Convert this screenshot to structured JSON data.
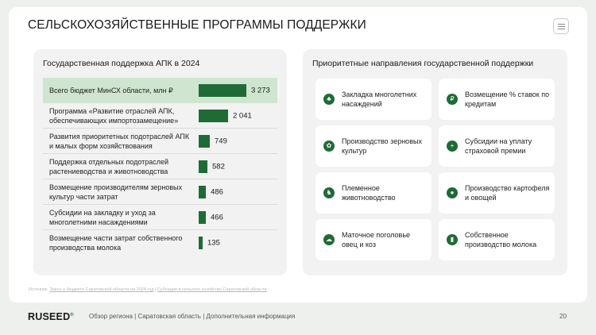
{
  "header": {
    "title": "СЕЛЬСКОХОЗЯЙСТВЕННЫЕ ПРОГРАММЫ ПОДДЕРЖКИ"
  },
  "left_panel": {
    "title": "Государственная поддержка АПК в 2024",
    "rows": [
      {
        "label": "Всего бюджет МинСХ области, млн ₽",
        "value": "3 273"
      },
      {
        "label": "Программа «Развитие отраслей АПК, обеспечивающих импортозамещение»",
        "value": "2 041"
      },
      {
        "label": "Развития приоритетных подотраслей АПК и малых форм хозяйствования",
        "value": "749"
      },
      {
        "label": "Поддержка отдельных подотраслей растениеводства и животноводства",
        "value": "582"
      },
      {
        "label": "Возмещение производителям зерновых культур части затрат",
        "value": "486"
      },
      {
        "label": "Субсидии на закладку и уход за многолетними насаждениями",
        "value": "466"
      },
      {
        "label": "Возмещение части затрат собственного производства молока",
        "value": "135"
      }
    ]
  },
  "chart_data": {
    "type": "bar",
    "categories": [
      "Всего бюджет МинСХ области, млн ₽",
      "Программа «Развитие отраслей АПК, обеспечивающих импортозамещение»",
      "Развития приоритетных подотраслей АПК и малых форм хозяйствования",
      "Поддержка отдельных подотраслей растениеводства и животноводства",
      "Возмещение производителям зерновых культур части затрат",
      "Субсидии на закладку и уход за многолетними насаждениями",
      "Возмещение части затрат собственного производства молока"
    ],
    "values": [
      3273,
      2041,
      749,
      582,
      486,
      466,
      135
    ],
    "title": "Государственная поддержка АПК в 2024",
    "xlabel": "",
    "ylabel": "",
    "orientation": "horizontal",
    "bar_color": "#1f6b36"
  },
  "source": {
    "prefix": "Источник:",
    "link1": "Закон о бюджете Саратовской области на 2024 год",
    "separator": "|",
    "link2": "Субсидии в сельское хозяйство Саратовской области"
  },
  "right_panel": {
    "title": "Приоритетные направления государственной поддержки",
    "cards": [
      {
        "icon": "tree-icon",
        "glyph": "♣",
        "text": "Закладка многолетних насаждений"
      },
      {
        "icon": "ruble-icon",
        "glyph": "₽",
        "text": "Возмещение % ставок по кредитам"
      },
      {
        "icon": "wheat-icon",
        "glyph": "✿",
        "text": "Производство зерновых культур"
      },
      {
        "icon": "shield-icon",
        "glyph": "+",
        "text": "Субсидии на уплату страховой премии"
      },
      {
        "icon": "cow-icon",
        "glyph": "♞",
        "text": "Племенное животноводство"
      },
      {
        "icon": "vegetable-icon",
        "glyph": "●",
        "text": "Производство картофеля и овощей"
      },
      {
        "icon": "sheep-icon",
        "glyph": "☁",
        "text": "Маточное поголовье овец и коз"
      },
      {
        "icon": "milk-icon",
        "glyph": "▮",
        "text": "Собственное производство молока"
      }
    ]
  },
  "footer": {
    "logo": "RUSEED",
    "logo_mark": "®",
    "nav": "Обзор региона  |  Саратовская область  |  Дополнительная информация",
    "page_number": "20"
  },
  "colors": {
    "accent": "#1f6b36",
    "highlight": "#cfe5cf",
    "panel": "#f1f2f1"
  }
}
